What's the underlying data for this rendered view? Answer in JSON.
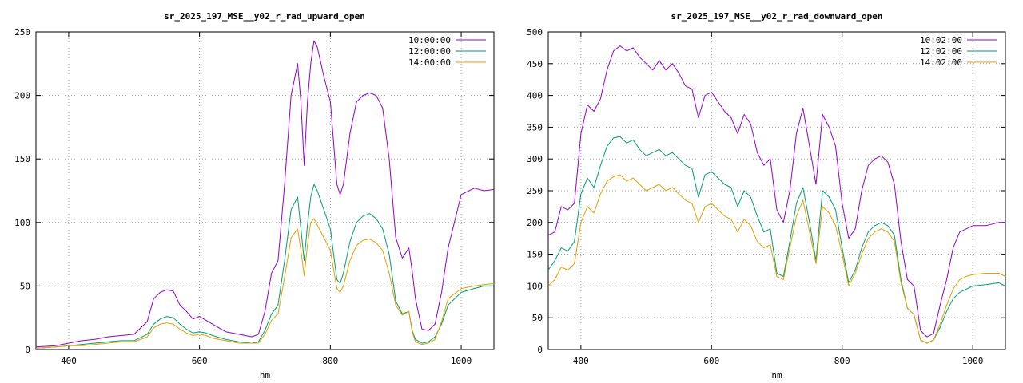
{
  "chart_data": [
    {
      "type": "line",
      "title": "sr_2025_197_MSE__y02_r_rad_upward_open",
      "xlabel": "nm",
      "ylabel": "",
      "xlim": [
        350,
        1050
      ],
      "ylim": [
        0,
        250
      ],
      "xticks": [
        400,
        600,
        800,
        1000
      ],
      "yticks": [
        0,
        50,
        100,
        150,
        200,
        250
      ],
      "grid": true,
      "legend_position": "top-right",
      "x": [
        350,
        380,
        400,
        420,
        440,
        460,
        480,
        500,
        520,
        530,
        540,
        550,
        560,
        570,
        580,
        590,
        600,
        610,
        620,
        640,
        660,
        680,
        690,
        700,
        710,
        720,
        730,
        740,
        750,
        755,
        760,
        765,
        770,
        775,
        780,
        790,
        800,
        810,
        815,
        820,
        830,
        840,
        850,
        860,
        870,
        880,
        890,
        900,
        910,
        920,
        925,
        930,
        940,
        950,
        960,
        970,
        980,
        1000,
        1020,
        1035,
        1050
      ],
      "series": [
        {
          "name": "10:00:00",
          "color": "#9400d3",
          "values": [
            2,
            3,
            5,
            7,
            8,
            10,
            11,
            12,
            22,
            40,
            45,
            47,
            46,
            35,
            30,
            24,
            26,
            23,
            20,
            14,
            12,
            10,
            12,
            30,
            60,
            70,
            130,
            200,
            225,
            195,
            145,
            195,
            225,
            243,
            238,
            215,
            195,
            130,
            122,
            130,
            170,
            195,
            200,
            202,
            200,
            190,
            150,
            88,
            72,
            80,
            62,
            40,
            16,
            15,
            20,
            45,
            80,
            122,
            127,
            125,
            126
          ]
        },
        {
          "name": "12:00:00",
          "color": "#009e73",
          "values": [
            1,
            2,
            3,
            4,
            5,
            6,
            7,
            7,
            12,
            20,
            24,
            26,
            25,
            20,
            16,
            13,
            14,
            13,
            11,
            8,
            6,
            5,
            6,
            15,
            28,
            35,
            70,
            110,
            120,
            95,
            70,
            98,
            120,
            130,
            125,
            110,
            95,
            55,
            52,
            60,
            85,
            100,
            105,
            107,
            103,
            95,
            75,
            38,
            28,
            30,
            15,
            8,
            5,
            6,
            10,
            20,
            35,
            45,
            48,
            50,
            50
          ]
        },
        {
          "name": "14:00:00",
          "color": "#e69f00",
          "values": [
            1,
            2,
            3,
            3,
            4,
            5,
            6,
            6,
            10,
            17,
            20,
            21,
            20,
            16,
            13,
            11,
            12,
            11,
            9,
            7,
            5,
            5,
            5,
            12,
            23,
            28,
            57,
            88,
            95,
            78,
            58,
            82,
            100,
            103,
            98,
            88,
            78,
            48,
            45,
            50,
            70,
            82,
            86,
            87,
            84,
            78,
            60,
            35,
            27,
            30,
            14,
            6,
            4,
            5,
            8,
            22,
            40,
            48,
            50,
            51,
            52
          ]
        }
      ]
    },
    {
      "type": "line",
      "title": "sr_2025_197_MSE__y02_r_rad_downward_open",
      "xlabel": "nm",
      "ylabel": "",
      "xlim": [
        350,
        1050
      ],
      "ylim": [
        0,
        500
      ],
      "xticks": [
        400,
        600,
        800,
        1000
      ],
      "yticks": [
        0,
        50,
        100,
        150,
        200,
        250,
        300,
        350,
        400,
        450,
        500
      ],
      "grid": true,
      "legend_position": "top-right",
      "x": [
        350,
        360,
        370,
        380,
        390,
        400,
        410,
        420,
        430,
        440,
        450,
        460,
        470,
        480,
        490,
        500,
        510,
        520,
        530,
        540,
        550,
        560,
        570,
        580,
        590,
        600,
        610,
        620,
        630,
        640,
        650,
        660,
        670,
        680,
        690,
        700,
        710,
        720,
        730,
        740,
        750,
        760,
        770,
        780,
        790,
        800,
        810,
        820,
        830,
        840,
        850,
        860,
        870,
        880,
        890,
        900,
        910,
        920,
        930,
        940,
        950,
        960,
        970,
        980,
        990,
        1000,
        1020,
        1040,
        1050
      ],
      "series": [
        {
          "name": "10:02:00",
          "color": "#9400d3",
          "values": [
            180,
            185,
            225,
            220,
            230,
            340,
            385,
            375,
            395,
            440,
            470,
            478,
            470,
            475,
            460,
            450,
            440,
            455,
            440,
            450,
            435,
            415,
            410,
            365,
            400,
            405,
            390,
            375,
            365,
            340,
            370,
            355,
            310,
            290,
            300,
            220,
            200,
            250,
            340,
            380,
            320,
            260,
            370,
            350,
            320,
            230,
            175,
            190,
            250,
            290,
            300,
            305,
            295,
            260,
            170,
            110,
            100,
            30,
            20,
            25,
            70,
            110,
            160,
            185,
            190,
            195,
            195,
            200,
            200
          ]
        },
        {
          "name": "12:02:00",
          "color": "#009e73",
          "values": [
            125,
            140,
            160,
            155,
            170,
            245,
            270,
            255,
            290,
            320,
            333,
            335,
            325,
            330,
            315,
            305,
            310,
            315,
            305,
            310,
            300,
            290,
            285,
            240,
            275,
            280,
            270,
            260,
            255,
            225,
            250,
            240,
            210,
            185,
            190,
            120,
            115,
            170,
            230,
            255,
            200,
            140,
            250,
            240,
            220,
            160,
            105,
            125,
            160,
            185,
            195,
            200,
            195,
            180,
            110,
            65,
            55,
            15,
            10,
            15,
            35,
            60,
            80,
            90,
            95,
            100,
            102,
            105,
            100
          ]
        },
        {
          "name": "14:02:00",
          "color": "#e69f00",
          "values": [
            100,
            110,
            130,
            125,
            135,
            200,
            225,
            215,
            245,
            265,
            272,
            275,
            265,
            270,
            260,
            250,
            255,
            260,
            250,
            255,
            245,
            235,
            230,
            200,
            225,
            230,
            220,
            210,
            205,
            185,
            205,
            195,
            170,
            160,
            165,
            115,
            110,
            160,
            210,
            235,
            185,
            135,
            225,
            215,
            195,
            150,
            100,
            120,
            150,
            175,
            185,
            190,
            185,
            170,
            105,
            65,
            55,
            15,
            10,
            15,
            40,
            70,
            95,
            110,
            115,
            118,
            120,
            120,
            115
          ]
        }
      ]
    }
  ]
}
